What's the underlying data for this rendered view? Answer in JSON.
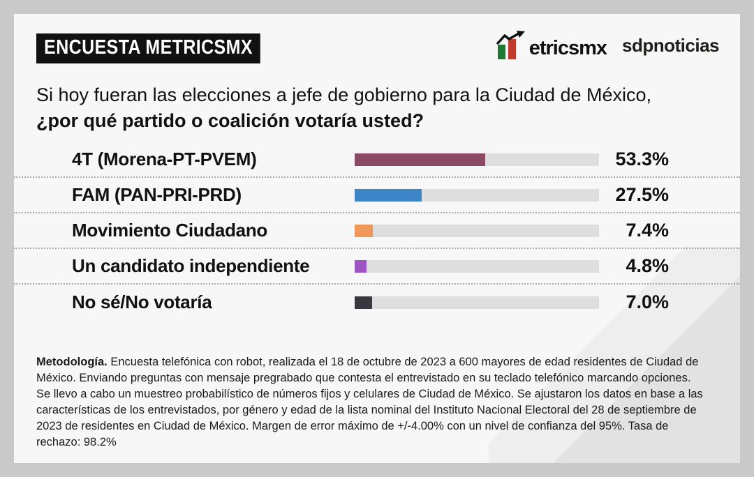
{
  "card": {
    "badge": "ENCUESTA METRICSMX",
    "brand": {
      "logo_text": "etricsmx",
      "partner": "sdpnoticias"
    },
    "question": {
      "line1": "Si hoy fueran las elecciones a jefe de gobierno para la Ciudad de México,",
      "line2": "¿por qué partido o coalición votaría usted?"
    },
    "methodology": {
      "lead": "Metodología.",
      "body": "Encuesta telefónica con robot, realizada el 18 de octubre de 2023 a 600 mayores de edad residentes de Ciudad de México. Enviando preguntas con mensaje pregrabado que contesta el entrevistado en su teclado telefónico marcando opciones. Se llevo a cabo un muestreo probabilístico de números fijos y celulares de Ciudad de México. Se ajustaron los datos en base a las características de los entrevistados, por género y edad de la lista nominal del Instituto Nacional Electoral del 28 de septiembre de 2023 de residentes en Ciudad de México. Margen de error máximo de +/-4.00% con un nivel de confianza del 95%. Tasa de rechazo: 98.2%"
    }
  },
  "colors": {
    "background": "#c9c9c9",
    "card": "#f7f7f7",
    "badge_bg": "#111111",
    "track": "#dedede",
    "logo_green": "#1e7a33",
    "logo_red": "#c0392b"
  },
  "chart_data": {
    "type": "bar",
    "orientation": "horizontal",
    "title": "Si hoy fueran las elecciones a jefe de gobierno para la Ciudad de México, ¿por qué partido o coalición votaría usted?",
    "categories": [
      "4T (Morena-PT-PVEM)",
      "FAM (PAN-PRI-PRD)",
      "Movimiento Ciudadano",
      "Un candidato independiente",
      "No sé/No votaría"
    ],
    "values": [
      53.3,
      27.5,
      7.4,
      4.8,
      7.0
    ],
    "value_labels": [
      "53.3%",
      "27.5%",
      "7.4%",
      "4.8%",
      "7.0%"
    ],
    "colors": [
      "#8b4a63",
      "#3d85c6",
      "#f0975a",
      "#9b56c4",
      "#38383e"
    ],
    "xlim": [
      0,
      100
    ],
    "grid": false,
    "legend": false
  }
}
